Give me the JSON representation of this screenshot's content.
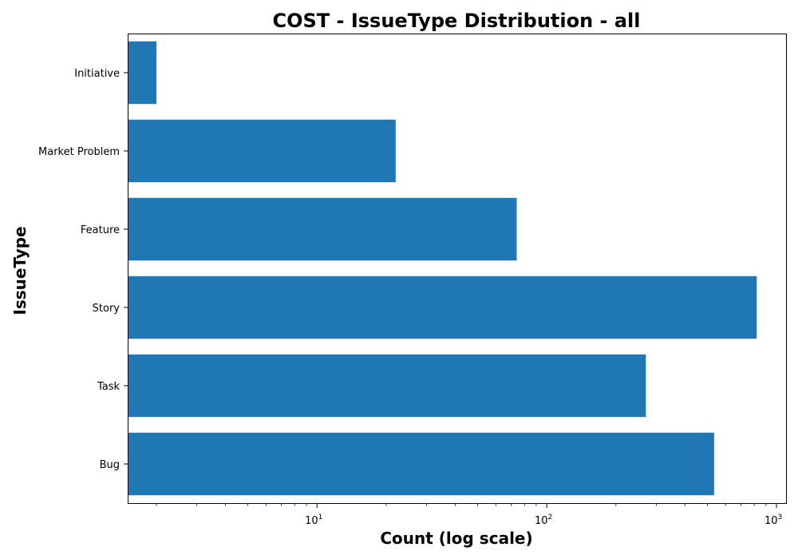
{
  "chart_data": {
    "type": "bar",
    "orientation": "horizontal",
    "title": "COST - IssueType Distribution - all",
    "xlabel": "Count (log scale)",
    "ylabel": "IssueType",
    "xscale": "log",
    "xlim": [
      1.5,
      1100
    ],
    "categories": [
      "Bug",
      "Task",
      "Story",
      "Feature",
      "Market Problem",
      "Initiative"
    ],
    "values": [
      535,
      270,
      820,
      74,
      22,
      2
    ],
    "x_ticks": [
      {
        "value": 10,
        "base": "10",
        "exp": "1"
      },
      {
        "value": 100,
        "base": "10",
        "exp": "2"
      },
      {
        "value": 1000,
        "base": "10",
        "exp": "3"
      }
    ],
    "grid": false,
    "legend": "none",
    "bar_color": "#1f77b4"
  }
}
